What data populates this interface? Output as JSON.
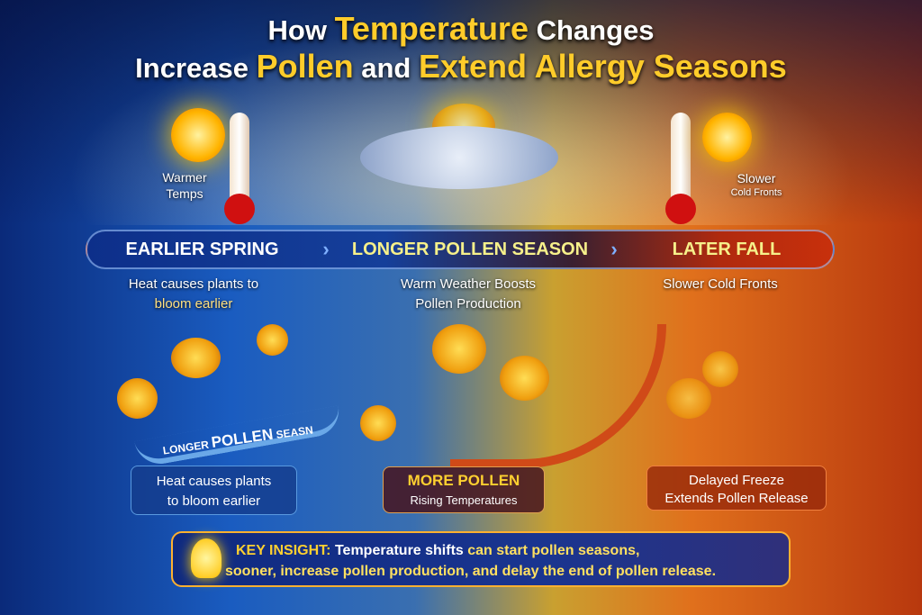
{
  "title": {
    "line1_pre": "How ",
    "line1_em": "Temperature",
    "line1_post": " Changes",
    "line2_pre": "Increase ",
    "line2_em1": "Pollen",
    "line2_mid": " and ",
    "line2_em2": "Extend Allergy Seasons"
  },
  "left_icon": {
    "line1": "Warmer",
    "line2": "Temps"
  },
  "right_icon": {
    "line1": "Slower",
    "line2": "Cold Fronts"
  },
  "banner": {
    "stages": [
      "EARLIER SPRING",
      "LONGER POLLEN SEASON",
      "LATER FALL"
    ],
    "colors": [
      "#ffffff",
      "#f6f08a",
      "#f6f08a"
    ]
  },
  "captions": [
    {
      "line1": "Heat causes plants to",
      "line2": "bloom earlier"
    },
    {
      "line1": "Warm Weather Boosts",
      "line2": "Pollen Production"
    },
    {
      "line1": "Slower Cold Fronts",
      "line2": ""
    }
  ],
  "arc_label": {
    "pre": "LONGER ",
    "em": "POLLEN",
    "post": " SEASN"
  },
  "boxes": [
    {
      "line1": "Heat causes plants",
      "line2": "to bloom earlier"
    },
    {
      "title": "MORE POLLEN",
      "line2": "Rising Temperatures"
    },
    {
      "line1": "Delayed Freeze",
      "line2": "Extends Pollen Release"
    }
  ],
  "insight": {
    "label": "KEY INSIGHT:",
    "text_white": "Temperature shifts",
    "text_gold": " can start pollen seasons,",
    "line2": "sooner, increase pollen production, and delay the end of pollen release."
  }
}
